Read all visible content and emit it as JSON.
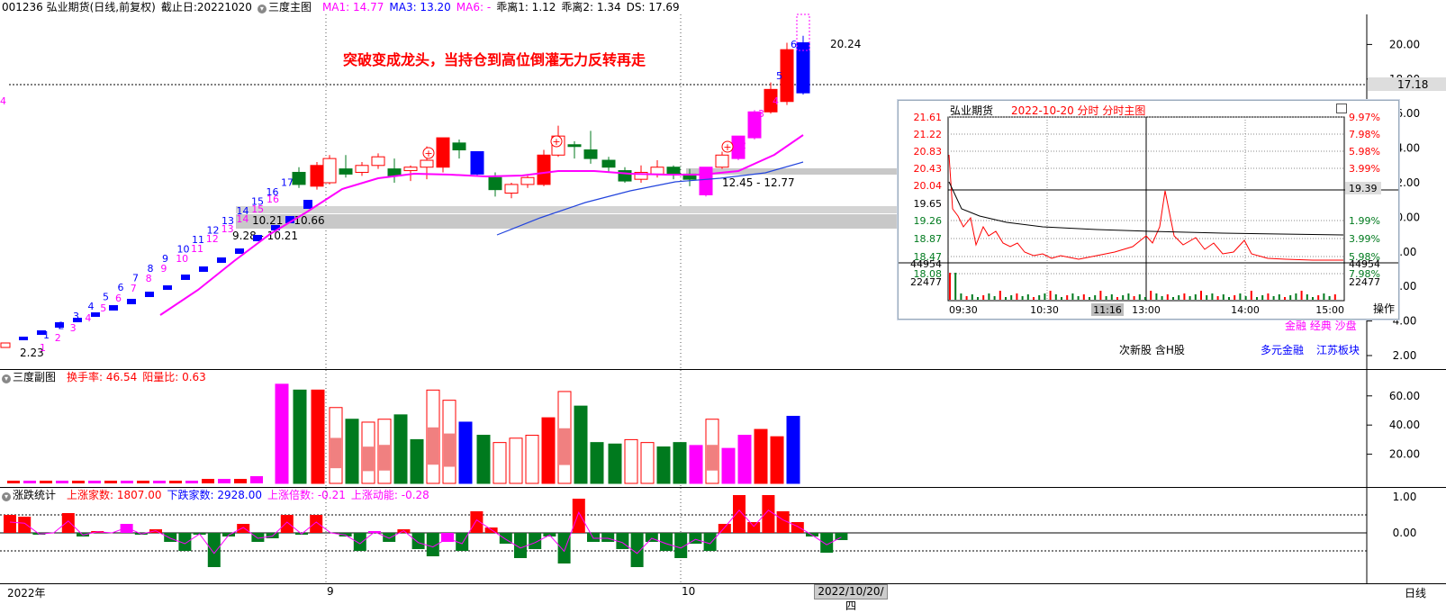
{
  "header_main": {
    "code_name": "001236 弘业期货(日线,前复权)",
    "cutoff": "截止日:20221020",
    "indicator": "三度主图",
    "ma1": "MA1: 14.77",
    "ma3": "MA3: 13.20",
    "ma6": "MA6: -",
    "dev1": "乖离1: 1.12",
    "dev2": "乖离2: 1.34",
    "ds": "DS: 17.69"
  },
  "header_sub1": {
    "indicator": "三度副图",
    "turnover": "换手率: 46.54",
    "yang_ratio": "阳量比: 0.63"
  },
  "header_sub2": {
    "indicator": "涨跌统计",
    "up_count": "上涨家数: 1807.00",
    "down_count": "下跌家数: 2928.00",
    "up_multiple": "上涨倍数: -0.21",
    "up_momentum": "上涨动能: -0.28"
  },
  "annotation_title": "突破变成龙头，当持仓到高位倒灌无力反转再走",
  "price_labels": {
    "low": "2.23",
    "high": "20.24",
    "zone1": "9.28 - 10.21",
    "zone2": "10.21 - 10.66",
    "zone3": "12.45 - 12.77",
    "current": "17.18"
  },
  "main_axis": [
    "20.00",
    "18.00",
    "16.00",
    "14.00",
    "12.00",
    "10.00",
    "8.00",
    "6.00",
    "4.00",
    "2.00"
  ],
  "sub1_axis": [
    "60.00",
    "40.00",
    "20.00"
  ],
  "sub2_axis": [
    "1.00",
    "0.00"
  ],
  "time_axis": {
    "year": "2022年",
    "sep": "9",
    "oct": "10",
    "cursor_date": "2022/10/20/四",
    "period": "日线"
  },
  "counters_blue": [
    "1",
    "2",
    "3",
    "4",
    "5",
    "6",
    "7",
    "8",
    "9",
    "10",
    "11",
    "12",
    "13",
    "14",
    "15",
    "16",
    "17"
  ],
  "counters_pink": [
    "1",
    "2",
    "3",
    "4",
    "5",
    "6",
    "7",
    "8",
    "9",
    "10",
    "11",
    "12",
    "13",
    "14",
    "15",
    "16"
  ],
  "top_counters": {
    "blue": [
      "5",
      "6"
    ],
    "pink": [
      "2",
      "3",
      "4"
    ]
  },
  "tags": {
    "new_stock": "次新股 含H股",
    "concept1": "多元金融",
    "concept2": "江苏板块",
    "concept3": "金融 经典 沙盘"
  },
  "intraday": {
    "name": "弘业期货",
    "title": "2022-10-20 分时 分时主图",
    "price_labels": [
      "21.61",
      "21.22",
      "20.83",
      "20.43",
      "20.04",
      "19.65",
      "19.26",
      "18.87",
      "18.47",
      "18.08"
    ],
    "pct_labels": [
      "9.97%",
      "7.98%",
      "5.98%",
      "3.99%",
      "1.99%",
      "",
      "1.99%",
      "3.99%",
      "5.98%",
      "7.98%"
    ],
    "current_price": "19.39",
    "volume_labels": [
      "44954",
      "22477"
    ],
    "times": [
      "09:30",
      "10:30",
      "11:16",
      "13:00",
      "14:00",
      "15:00"
    ],
    "action": "操作"
  },
  "colors": {
    "up": "#ff0000",
    "down": "#007a1e",
    "pink": "#ff00ff",
    "blue": "#0000ff",
    "light_red": "#f08080"
  }
}
